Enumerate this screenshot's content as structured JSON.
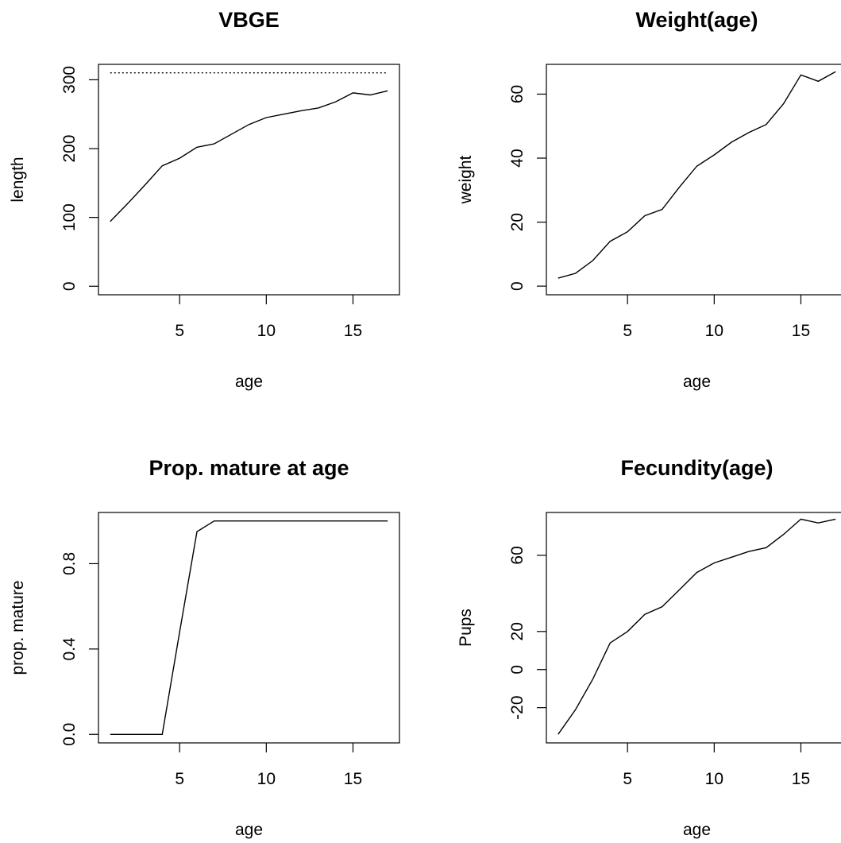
{
  "chart_data": [
    {
      "type": "line",
      "title": "VBGE",
      "xlabel": "age",
      "ylabel": "length",
      "xlim": [
        0.32,
        17.68
      ],
      "ylim": [
        -12.4,
        322.4
      ],
      "xticks": [
        5,
        10,
        15
      ],
      "yticks": [
        0,
        100,
        200,
        300
      ],
      "x": [
        1,
        2,
        3,
        4,
        5,
        6,
        7,
        8,
        9,
        10,
        11,
        12,
        13,
        14,
        15,
        16,
        17
      ],
      "series": [
        {
          "values": [
            94,
            120,
            147,
            175,
            186,
            202,
            207,
            221,
            235,
            245,
            250,
            255,
            259,
            268,
            281,
            278,
            284
          ],
          "style": "solid"
        },
        {
          "values": [
            310,
            310,
            310,
            310,
            310,
            310,
            310,
            310,
            310,
            310,
            310,
            310,
            310,
            310,
            310,
            310,
            310
          ],
          "style": "dotted"
        }
      ],
      "grid": false,
      "color": "#000000"
    },
    {
      "type": "line",
      "title": "Weight(age)",
      "xlabel": "age",
      "ylabel": "weight",
      "xlim": [
        0.32,
        17.68
      ],
      "ylim": [
        -2.7,
        69.3
      ],
      "xticks": [
        5,
        10,
        15
      ],
      "yticks": [
        0,
        20,
        40,
        60
      ],
      "x": [
        1,
        2,
        3,
        4,
        5,
        6,
        7,
        8,
        9,
        10,
        11,
        12,
        13,
        14,
        15,
        16,
        17
      ],
      "series": [
        {
          "values": [
            2.5,
            4,
            8,
            14,
            17,
            22,
            24,
            31,
            37.5,
            41,
            45,
            48,
            50.5,
            57,
            66,
            64,
            67
          ],
          "style": "solid"
        }
      ],
      "grid": false,
      "color": "#000000"
    },
    {
      "type": "line",
      "title": "Prop. mature at age",
      "xlabel": "age",
      "ylabel": "prop. mature",
      "xlim": [
        0.32,
        17.68
      ],
      "ylim": [
        -0.04,
        1.04
      ],
      "xticks": [
        5,
        10,
        15
      ],
      "yticks": [
        "0.0",
        "0.4",
        "0.8"
      ],
      "x": [
        1,
        2,
        3,
        4,
        5,
        6,
        7,
        8,
        9,
        10,
        11,
        12,
        13,
        14,
        15,
        16,
        17
      ],
      "series": [
        {
          "values": [
            0,
            0,
            0,
            0,
            0.48,
            0.95,
            1,
            1,
            1,
            1,
            1,
            1,
            1,
            1,
            1,
            1,
            1
          ],
          "style": "solid"
        }
      ],
      "grid": false,
      "color": "#000000"
    },
    {
      "type": "line",
      "title": "Fecundity(age)",
      "xlabel": "age",
      "ylabel": "Pups",
      "xlim": [
        0.32,
        17.68
      ],
      "ylim": [
        -38.5,
        82.5
      ],
      "xticks": [
        5,
        10,
        15
      ],
      "yticks": [
        "-20",
        "0",
        "20",
        "60"
      ],
      "x": [
        1,
        2,
        3,
        4,
        5,
        6,
        7,
        8,
        9,
        10,
        11,
        12,
        13,
        14,
        15,
        16,
        17
      ],
      "series": [
        {
          "values": [
            -34,
            -21,
            -5,
            14,
            20,
            29,
            33,
            42,
            51,
            56,
            59,
            62,
            64,
            71,
            79,
            77,
            79
          ],
          "style": "solid"
        }
      ],
      "grid": false,
      "color": "#000000"
    }
  ]
}
